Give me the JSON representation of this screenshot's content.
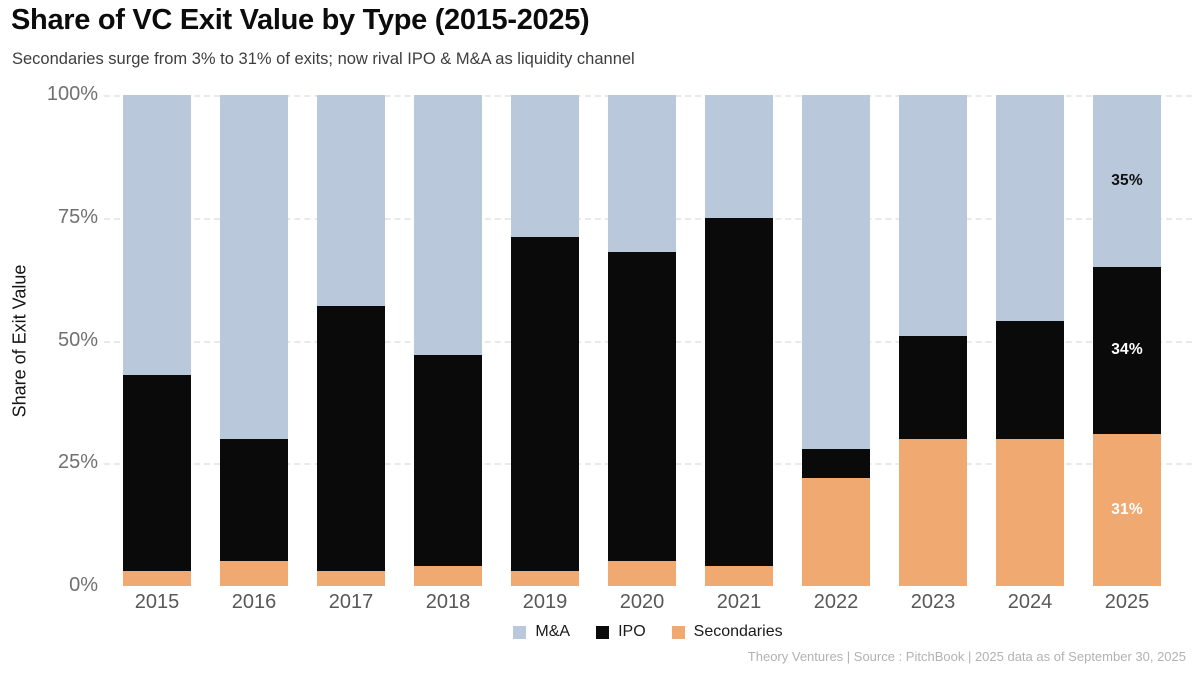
{
  "header": {
    "title": "Share of VC Exit Value by Type (2015-2025)",
    "subtitle": "Secondaries surge from 3% to 31% of exits; now rival IPO & M&A as liquidity channel"
  },
  "chart_data": {
    "type": "bar",
    "stacked": true,
    "title": "Share of VC Exit Value by Type (2015-2025)",
    "subtitle": "Secondaries surge from 3% to 31% of exits; now rival IPO & M&A as liquidity channel",
    "categories": [
      "2015",
      "2016",
      "2017",
      "2018",
      "2019",
      "2020",
      "2021",
      "2022",
      "2023",
      "2024",
      "2025"
    ],
    "series": [
      {
        "name": "M&A",
        "color": "#b9c8da",
        "values": [
          57,
          70,
          43,
          53,
          29,
          32,
          25,
          72,
          49,
          46,
          35
        ]
      },
      {
        "name": "IPO",
        "color": "#0a0a0a",
        "values": [
          40,
          25,
          54,
          43,
          68,
          63,
          71,
          6,
          21,
          24,
          34
        ]
      },
      {
        "name": "Secondaries",
        "color": "#efa971",
        "values": [
          3,
          5,
          3,
          4,
          3,
          5,
          4,
          22,
          30,
          30,
          31
        ]
      }
    ],
    "stack_order_bottom_to_top": [
      "Secondaries",
      "IPO",
      "M&A"
    ],
    "xlabel": "",
    "ylabel": "Share of Exit Value",
    "ylim": [
      0,
      100
    ],
    "yticks": [
      {
        "pct": 0,
        "label": "0%"
      },
      {
        "pct": 25,
        "label": "25%"
      },
      {
        "pct": 50,
        "label": "50%"
      },
      {
        "pct": 75,
        "label": "75%"
      },
      {
        "pct": 100,
        "label": "100%"
      }
    ],
    "gridlines_pct": [
      25,
      50,
      75,
      100
    ],
    "grid_style": "dashed",
    "legend_position": "bottom-center",
    "bar_labels": [
      {
        "category": "2025",
        "segment": "M&A",
        "text": "35%",
        "text_color": "#111111"
      },
      {
        "category": "2025",
        "segment": "IPO",
        "text": "34%",
        "text_color": "#ffffff"
      },
      {
        "category": "2025",
        "segment": "Secondaries",
        "text": "31%",
        "text_color": "#ffffff"
      }
    ]
  },
  "footer": {
    "source_line": "Theory Ventures | Source : PitchBook | 2025 data as of September 30, 2025"
  },
  "colors": {
    "background": "#ffffff",
    "gridline": "#e9e9e9",
    "y_tick_text": "#707070",
    "x_tick_text": "#585858",
    "title": "#0c0c0c",
    "subtitle": "#3e3e3e",
    "footer_text": "#b3b1b1",
    "mna": "#b9c8da",
    "ipo": "#0a0a0a",
    "secondaries": "#efa971"
  }
}
